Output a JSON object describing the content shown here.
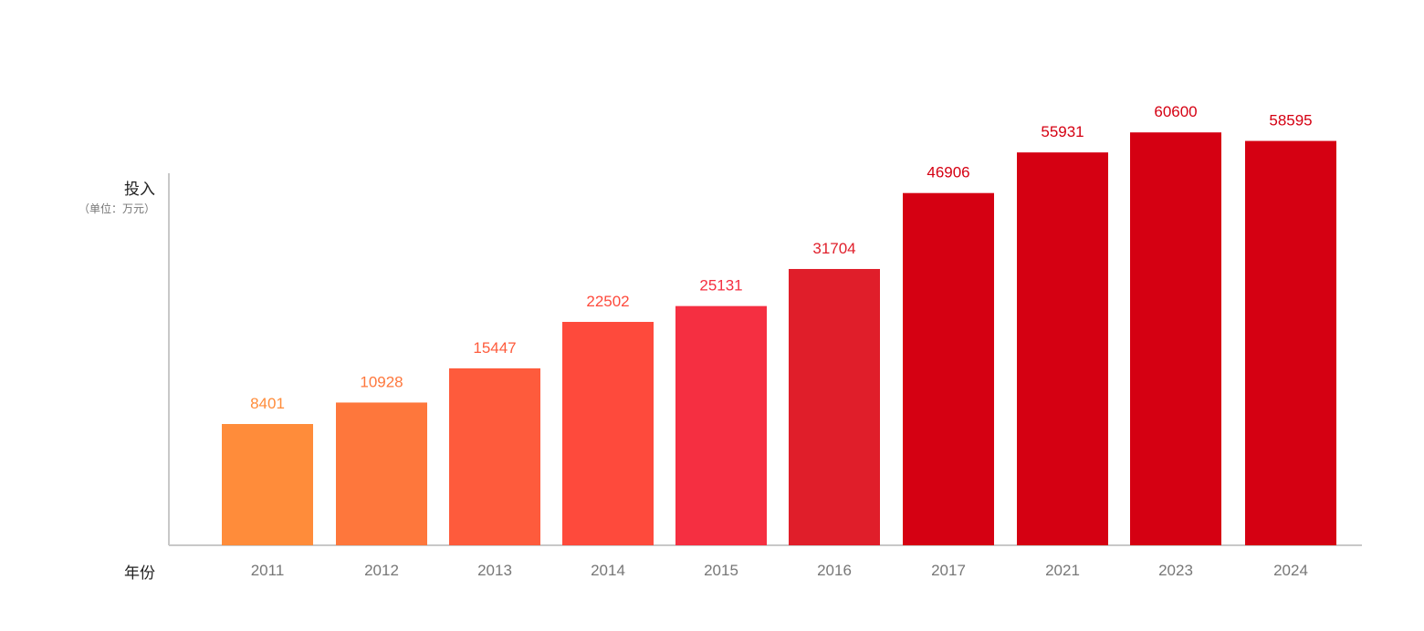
{
  "chart_data": {
    "type": "bar",
    "title": "",
    "ylabel": "投入",
    "yunit": "（单位：万元）",
    "xlabel": "年份",
    "categories": [
      "2011",
      "2012",
      "2013",
      "2014",
      "2015",
      "2016",
      "2017",
      "2021",
      "2023",
      "2024"
    ],
    "values": [
      8401,
      10928,
      15447,
      22502,
      25131,
      31704,
      46906,
      55931,
      60600,
      58595
    ],
    "colors": [
      "#FF8C3A",
      "#FE773C",
      "#FE5B3C",
      "#FE4A3C",
      "#F52F41",
      "#E01E2A",
      "#D50012",
      "#D50012",
      "#D50012",
      "#D50012"
    ],
    "axis_color": "#C8C8C8",
    "tick_label_color": "#777777",
    "grid": false,
    "legend": "none",
    "data_labels": true
  }
}
